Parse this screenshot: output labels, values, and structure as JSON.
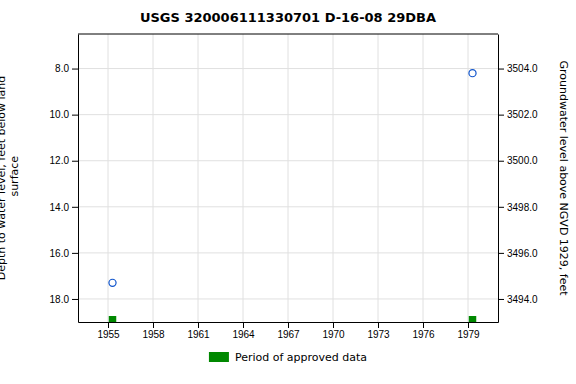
{
  "chart_data": {
    "type": "scatter",
    "title": "USGS 320006111330701 D-16-08 29DBA",
    "ylabel": "Depth to water level, feet below land\n surface",
    "y2label": "Groundwater level above NGVD 1929, feet",
    "xlim": [
      1953.0,
      1981.0
    ],
    "ylim": [
      19.0,
      6.5
    ],
    "y2lim": [
      3493.0,
      3505.5
    ],
    "xticks": [
      1955,
      1958,
      1961,
      1964,
      1967,
      1970,
      1973,
      1976,
      1979
    ],
    "yticks": [
      {
        "value": 8.0,
        "label": "8.0"
      },
      {
        "value": 10.0,
        "label": "10.0"
      },
      {
        "value": 12.0,
        "label": "12.0"
      },
      {
        "value": 14.0,
        "label": "14.0"
      },
      {
        "value": 16.0,
        "label": "16.0"
      },
      {
        "value": 18.0,
        "label": "18.0"
      }
    ],
    "y2ticks": [
      {
        "value": 3494.0,
        "label": "3494.0"
      },
      {
        "value": 3496.0,
        "label": "3496.0"
      },
      {
        "value": 3498.0,
        "label": "3498.0"
      },
      {
        "value": 3500.0,
        "label": "3500.0"
      },
      {
        "value": 3502.0,
        "label": "3502.0"
      },
      {
        "value": 3504.0,
        "label": "3504.0"
      }
    ],
    "grid": true,
    "legend": "bottom",
    "series": [
      {
        "type": "scatter",
        "x": [
          1955.3,
          1979.3
        ],
        "values": [
          17.3,
          8.2
        ],
        "color": "#1155cc",
        "marker": "circle"
      },
      {
        "type": "bar",
        "name": "Period of approved data",
        "x": [
          1955.3,
          1979.3
        ],
        "width": [
          0.5,
          0.5
        ],
        "color": "#008800"
      }
    ]
  }
}
